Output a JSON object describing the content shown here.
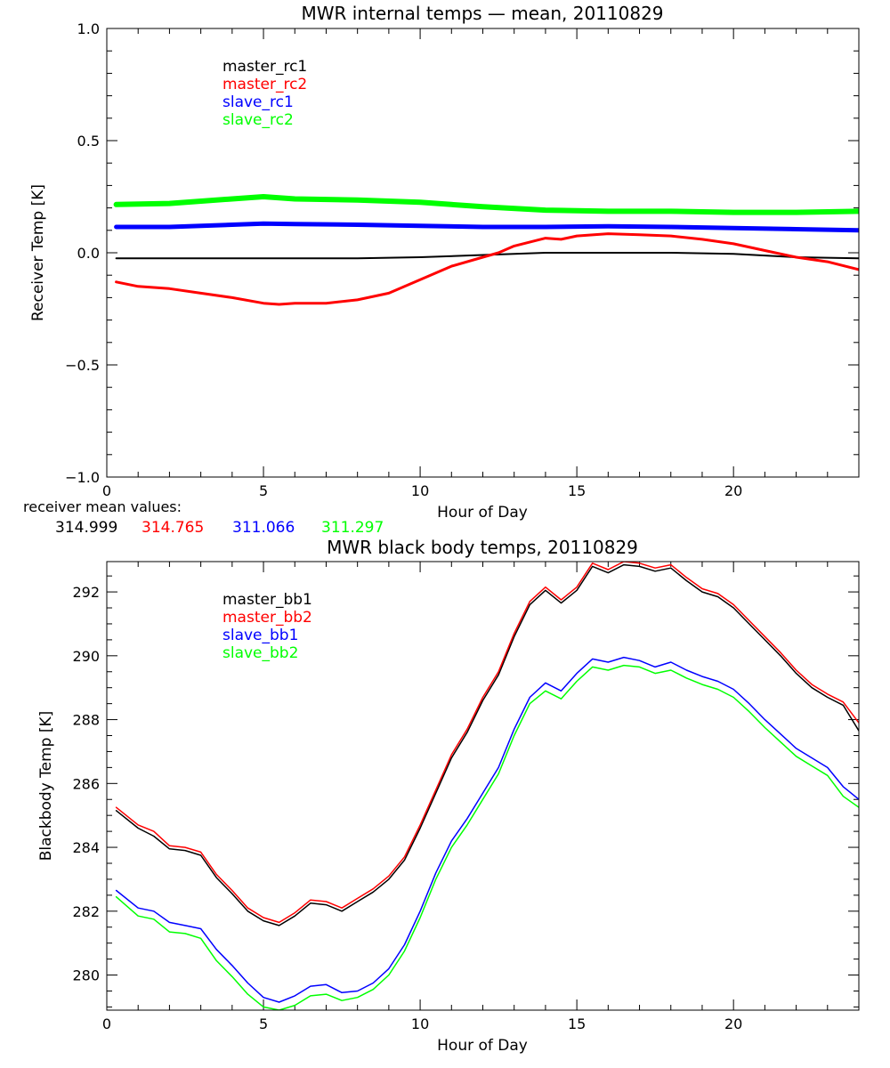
{
  "colors": {
    "master_1": "#000000",
    "master_2": "#ff0000",
    "slave_1": "#0000ff",
    "slave_2": "#00ff00"
  },
  "receiver_note": {
    "label": "receiver mean values:",
    "values": [
      {
        "text": "314.999",
        "color": "#000000"
      },
      {
        "text": "314.765",
        "color": "#ff0000"
      },
      {
        "text": "311.066",
        "color": "#0000ff"
      },
      {
        "text": "311.297",
        "color": "#00ff00"
      }
    ]
  },
  "chart_data": [
    {
      "type": "line",
      "title": "MWR internal temps — mean, 20110829",
      "xlabel": "Hour of Day",
      "ylabel": "Receiver Temp [K]",
      "xlim": [
        0,
        24
      ],
      "ylim": [
        -1.0,
        1.0
      ],
      "xticks": [
        0,
        5,
        10,
        15,
        20
      ],
      "xtick_labels": [
        "0",
        "5",
        "10",
        "15",
        "20"
      ],
      "yticks": [
        -1.0,
        -0.5,
        0.0,
        0.5,
        1.0
      ],
      "ytick_labels": [
        "−1.0",
        "−0.5",
        "0.0",
        "0.5",
        "1.0"
      ],
      "x_minor_step": 1,
      "y_minor_step": 0.1,
      "legend_position": "top-left",
      "grid": false,
      "series": [
        {
          "name": "master_rc1",
          "color": "#000000",
          "width": 2,
          "x": [
            0.3,
            2,
            4,
            6,
            8,
            10,
            12,
            14,
            16,
            18,
            20,
            22,
            24
          ],
          "y": [
            -0.025,
            -0.025,
            -0.025,
            -0.025,
            -0.025,
            -0.02,
            -0.01,
            0.0,
            0.0,
            0.0,
            -0.005,
            -0.02,
            -0.025
          ]
        },
        {
          "name": "master_rc2",
          "color": "#ff0000",
          "width": 3,
          "x": [
            0.3,
            1,
            2,
            3,
            4,
            5,
            5.5,
            6,
            7,
            8,
            9,
            10,
            11,
            12,
            12.5,
            13,
            14,
            14.5,
            15,
            16,
            17,
            18,
            19,
            20,
            21,
            22,
            23,
            24
          ],
          "y": [
            -0.13,
            -0.15,
            -0.16,
            -0.18,
            -0.2,
            -0.225,
            -0.23,
            -0.225,
            -0.225,
            -0.21,
            -0.18,
            -0.12,
            -0.06,
            -0.02,
            0.0,
            0.03,
            0.065,
            0.06,
            0.075,
            0.085,
            0.08,
            0.075,
            0.06,
            0.04,
            0.01,
            -0.02,
            -0.04,
            -0.075
          ]
        },
        {
          "name": "slave_rc1",
          "color": "#0000ff",
          "width": 5,
          "x": [
            0.3,
            2,
            4,
            5,
            6,
            8,
            10,
            12,
            14,
            16,
            18,
            20,
            22,
            24
          ],
          "y": [
            0.115,
            0.115,
            0.125,
            0.13,
            0.128,
            0.125,
            0.12,
            0.115,
            0.115,
            0.118,
            0.115,
            0.11,
            0.105,
            0.1
          ]
        },
        {
          "name": "slave_rc2",
          "color": "#00ff00",
          "width": 6,
          "x": [
            0.3,
            2,
            4,
            5,
            6,
            8,
            10,
            12,
            14,
            16,
            18,
            20,
            22,
            24
          ],
          "y": [
            0.215,
            0.22,
            0.24,
            0.25,
            0.24,
            0.235,
            0.225,
            0.205,
            0.19,
            0.185,
            0.185,
            0.18,
            0.18,
            0.185
          ]
        }
      ]
    },
    {
      "type": "line",
      "title": "MWR black body temps, 20110829",
      "xlabel": "Hour of Day",
      "ylabel": "Blackbody Temp [K]",
      "xlim": [
        0,
        24
      ],
      "ylim": [
        278.9,
        292.95
      ],
      "xticks": [
        0,
        5,
        10,
        15,
        20
      ],
      "xtick_labels": [
        "0",
        "5",
        "10",
        "15",
        "20"
      ],
      "yticks": [
        280,
        282,
        284,
        286,
        288,
        290,
        292
      ],
      "ytick_labels": [
        "280",
        "282",
        "284",
        "286",
        "288",
        "290",
        "292"
      ],
      "x_minor_step": 1,
      "y_minor_step": 0.5,
      "legend_position": "top-left",
      "grid": false,
      "series": [
        {
          "name": "master_bb1",
          "color": "#000000",
          "width": 1.5,
          "x": [
            0.3,
            1,
            1.5,
            2,
            2.5,
            3,
            3.5,
            4,
            4.5,
            5,
            5.5,
            6,
            6.5,
            7,
            7.5,
            8,
            8.5,
            9,
            9.5,
            10,
            10.5,
            11,
            11.5,
            12,
            12.5,
            13,
            13.5,
            14,
            14.5,
            15,
            15.5,
            16,
            16.5,
            17,
            17.5,
            18,
            18.5,
            19,
            19.5,
            20,
            20.5,
            21,
            21.5,
            22,
            22.5,
            23,
            23.5,
            24
          ],
          "y": [
            285.15,
            284.6,
            284.35,
            283.95,
            283.9,
            283.75,
            283.05,
            282.55,
            282.0,
            281.7,
            281.55,
            281.85,
            282.25,
            282.2,
            282.0,
            282.3,
            282.6,
            283.0,
            283.6,
            284.6,
            285.7,
            286.8,
            287.6,
            288.6,
            289.4,
            290.6,
            291.6,
            292.05,
            291.65,
            292.05,
            292.8,
            292.6,
            292.85,
            292.8,
            292.65,
            292.75,
            292.35,
            292.0,
            291.85,
            291.5,
            291.0,
            290.5,
            290.0,
            289.45,
            289.0,
            288.7,
            288.45,
            287.65
          ]
        },
        {
          "name": "master_bb2",
          "color": "#ff0000",
          "width": 1.5,
          "x": [
            0.3,
            1,
            1.5,
            2,
            2.5,
            3,
            3.5,
            4,
            4.5,
            5,
            5.5,
            6,
            6.5,
            7,
            7.5,
            8,
            8.5,
            9,
            9.5,
            10,
            10.5,
            11,
            11.5,
            12,
            12.5,
            13,
            13.5,
            14,
            14.5,
            15,
            15.5,
            16,
            16.5,
            17,
            17.5,
            18,
            18.5,
            19,
            19.5,
            20,
            20.5,
            21,
            21.5,
            22,
            22.5,
            23,
            23.5,
            24
          ],
          "y": [
            285.25,
            284.7,
            284.5,
            284.05,
            284.0,
            283.85,
            283.15,
            282.65,
            282.1,
            281.8,
            281.65,
            281.95,
            282.35,
            282.3,
            282.1,
            282.4,
            282.7,
            283.1,
            283.7,
            284.7,
            285.8,
            286.9,
            287.7,
            288.7,
            289.5,
            290.7,
            291.7,
            292.15,
            291.75,
            292.15,
            292.9,
            292.7,
            292.95,
            292.9,
            292.75,
            292.85,
            292.45,
            292.1,
            291.95,
            291.6,
            291.1,
            290.6,
            290.1,
            289.55,
            289.1,
            288.8,
            288.55,
            287.9
          ]
        },
        {
          "name": "slave_bb1",
          "color": "#0000ff",
          "width": 1.5,
          "x": [
            0.3,
            1,
            1.5,
            2,
            2.5,
            3,
            3.5,
            4,
            4.5,
            5,
            5.5,
            6,
            6.5,
            7,
            7.5,
            8,
            8.5,
            9,
            9.5,
            10,
            10.5,
            11,
            11.5,
            12,
            12.5,
            13,
            13.5,
            14,
            14.5,
            15,
            15.5,
            16,
            16.5,
            17,
            17.5,
            18,
            18.5,
            19,
            19.5,
            20,
            20.5,
            21,
            21.5,
            22,
            22.5,
            23,
            23.5,
            24
          ],
          "y": [
            282.65,
            282.1,
            282.0,
            281.65,
            281.55,
            281.45,
            280.8,
            280.3,
            279.75,
            279.3,
            279.15,
            279.35,
            279.65,
            279.7,
            279.45,
            279.5,
            279.75,
            280.2,
            280.95,
            282.0,
            283.2,
            284.2,
            284.9,
            285.7,
            286.5,
            287.7,
            288.7,
            289.15,
            288.9,
            289.45,
            289.9,
            289.8,
            289.95,
            289.85,
            289.65,
            289.8,
            289.55,
            289.35,
            289.2,
            288.95,
            288.5,
            288.0,
            287.55,
            287.1,
            286.8,
            286.5,
            285.9,
            285.5
          ]
        },
        {
          "name": "slave_bb2",
          "color": "#00ff00",
          "width": 1.5,
          "x": [
            0.3,
            1,
            1.5,
            2,
            2.5,
            3,
            3.5,
            4,
            4.5,
            5,
            5.5,
            6,
            6.5,
            7,
            7.5,
            8,
            8.5,
            9,
            9.5,
            10,
            10.5,
            11,
            11.5,
            12,
            12.5,
            13,
            13.5,
            14,
            14.5,
            15,
            15.5,
            16,
            16.5,
            17,
            17.5,
            18,
            18.5,
            19,
            19.5,
            20,
            20.5,
            21,
            21.5,
            22,
            22.5,
            23,
            23.5,
            24
          ],
          "y": [
            282.45,
            281.85,
            281.75,
            281.35,
            281.3,
            281.15,
            280.45,
            279.95,
            279.4,
            279.0,
            278.9,
            279.05,
            279.35,
            279.4,
            279.2,
            279.3,
            279.55,
            280.0,
            280.75,
            281.8,
            283.0,
            284.0,
            284.7,
            285.5,
            286.3,
            287.5,
            288.5,
            288.9,
            288.65,
            289.2,
            289.65,
            289.55,
            289.7,
            289.65,
            289.45,
            289.55,
            289.3,
            289.1,
            288.95,
            288.7,
            288.25,
            287.75,
            287.3,
            286.85,
            286.55,
            286.25,
            285.6,
            285.25
          ]
        }
      ]
    }
  ]
}
